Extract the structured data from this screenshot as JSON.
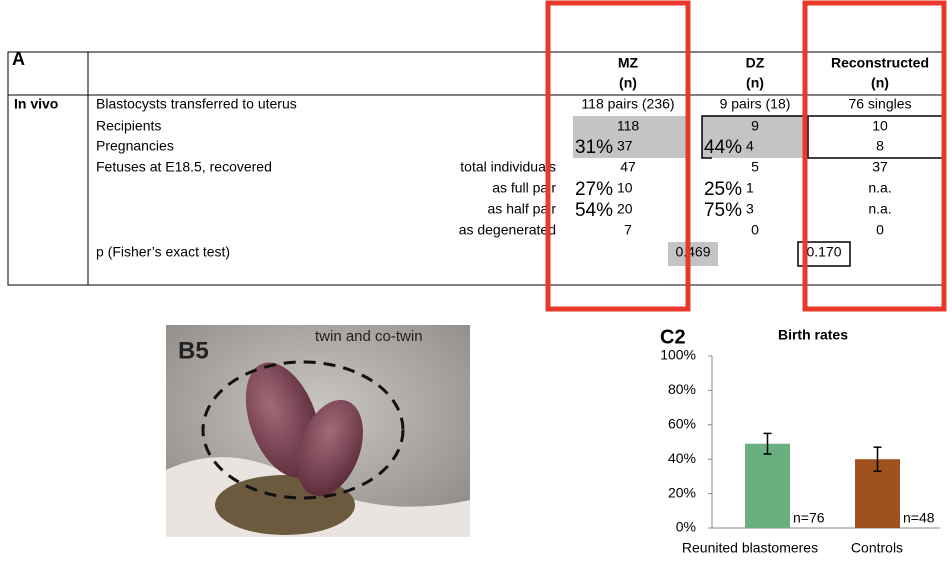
{
  "panel_a": {
    "label": "A",
    "columns": [
      {
        "name": "MZ",
        "unit": "(n)"
      },
      {
        "name": "DZ",
        "unit": "(n)"
      },
      {
        "name": "Reconstructed",
        "unit": "(n)"
      }
    ],
    "section": "In vivo",
    "rows": [
      {
        "label": "Blastocysts transferred to uterus",
        "mz": "118 pairs (236)",
        "dz": "9 pairs (18)",
        "rec": "76 singles"
      },
      {
        "label": "Recipients",
        "mz": "118",
        "dz": "9",
        "rec": "10"
      },
      {
        "label": "Pregnancies",
        "mz_pct": "31%",
        "mz": "37",
        "dz_pct": "44%",
        "dz": "4",
        "rec": "8"
      },
      {
        "label": "Fetuses at E18.5, recovered",
        "sublabel": "total individuals",
        "mz": "47",
        "dz": "5",
        "rec": "37"
      },
      {
        "sublabel": "as full pair",
        "mz_pct": "27%",
        "mz": "10",
        "dz_pct": "25%",
        "dz": "1",
        "rec": "n.a."
      },
      {
        "sublabel": "as half pair",
        "mz_pct": "54%",
        "mz": "20",
        "dz_pct": "75%",
        "dz": "3",
        "rec": "n.a."
      },
      {
        "sublabel": "as degenerated",
        "mz": "7",
        "dz": "0",
        "rec": "0"
      },
      {
        "label": "p (Fisher’s exact test)",
        "p_mz_dz": "0.469",
        "p_rec": "0.170"
      }
    ]
  },
  "panel_b5": {
    "label": "B5",
    "caption": "twin and co-twin"
  },
  "chart_data": {
    "type": "bar",
    "label": "C2",
    "title": "Birth rates",
    "categories": [
      "Reunited blastomeres",
      "Controls"
    ],
    "values": [
      49,
      40
    ],
    "errors": [
      6,
      7
    ],
    "colors": [
      "#6aaf7f",
      "#a0521e"
    ],
    "annotations": [
      "n=76",
      "n=48"
    ],
    "ylim": [
      0,
      100
    ],
    "yticks": [
      {
        "value": 0,
        "label": "0%"
      },
      {
        "value": 20,
        "label": "20%"
      },
      {
        "value": 40,
        "label": "40%"
      },
      {
        "value": 60,
        "label": "60%"
      },
      {
        "value": 80,
        "label": "80%"
      },
      {
        "value": 100,
        "label": "100%"
      }
    ]
  }
}
